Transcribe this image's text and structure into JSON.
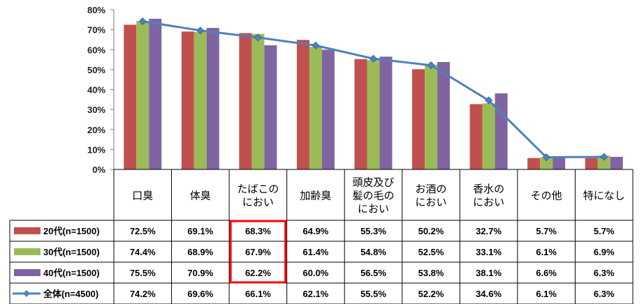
{
  "chart_data": {
    "type": "bar",
    "categories": [
      [
        "口臭"
      ],
      [
        "体臭"
      ],
      [
        "たばこの",
        "におい"
      ],
      [
        "加齢臭"
      ],
      [
        "頭皮及び",
        "髪の毛の",
        "におい"
      ],
      [
        "お酒の",
        "におい"
      ],
      [
        "香水の",
        "におい"
      ],
      [
        "その他"
      ],
      [
        "特になし"
      ]
    ],
    "series": [
      {
        "name": "20代(n=1500)",
        "kind": "bar",
        "color": "#c0504d",
        "values": [
          72.5,
          69.1,
          68.3,
          64.9,
          55.3,
          50.2,
          32.7,
          5.7,
          5.7
        ],
        "labels": [
          "72.5%",
          "69.1%",
          "68.3%",
          "64.9%",
          "55.3%",
          "50.2%",
          "32.7%",
          "5.7%",
          "5.7%"
        ]
      },
      {
        "name": "30代(n=1500)",
        "kind": "bar",
        "color": "#9bbb59",
        "values": [
          74.4,
          68.9,
          67.9,
          61.4,
          54.8,
          52.5,
          33.1,
          6.1,
          6.9
        ],
        "labels": [
          "74.4%",
          "68.9%",
          "67.9%",
          "61.4%",
          "54.8%",
          "52.5%",
          "33.1%",
          "6.1%",
          "6.9%"
        ]
      },
      {
        "name": "40代(n=1500)",
        "kind": "bar",
        "color": "#8064a2",
        "values": [
          75.5,
          70.9,
          62.2,
          60.0,
          56.5,
          53.8,
          38.1,
          6.6,
          6.3
        ],
        "labels": [
          "75.5%",
          "70.9%",
          "62.2%",
          "60.0%",
          "56.5%",
          "53.8%",
          "38.1%",
          "6.6%",
          "6.3%"
        ]
      },
      {
        "name": "全体(n=4500)",
        "kind": "line",
        "color": "#4f81bd",
        "values": [
          74.2,
          69.6,
          66.1,
          62.1,
          55.5,
          52.2,
          34.6,
          6.1,
          6.3
        ],
        "labels": [
          "74.2%",
          "69.6%",
          "66.1%",
          "62.1%",
          "55.5%",
          "52.2%",
          "34.6%",
          "6.1%",
          "6.3%"
        ]
      }
    ],
    "yticks": [
      "0%",
      "10%",
      "20%",
      "30%",
      "40%",
      "50%",
      "60%",
      "70%",
      "80%"
    ],
    "ylim": [
      0,
      80
    ],
    "grid": false,
    "legend": "data-table-left",
    "highlight": {
      "category_index": 2,
      "rows": [
        0,
        1,
        2
      ],
      "color": "#ff0000"
    }
  }
}
